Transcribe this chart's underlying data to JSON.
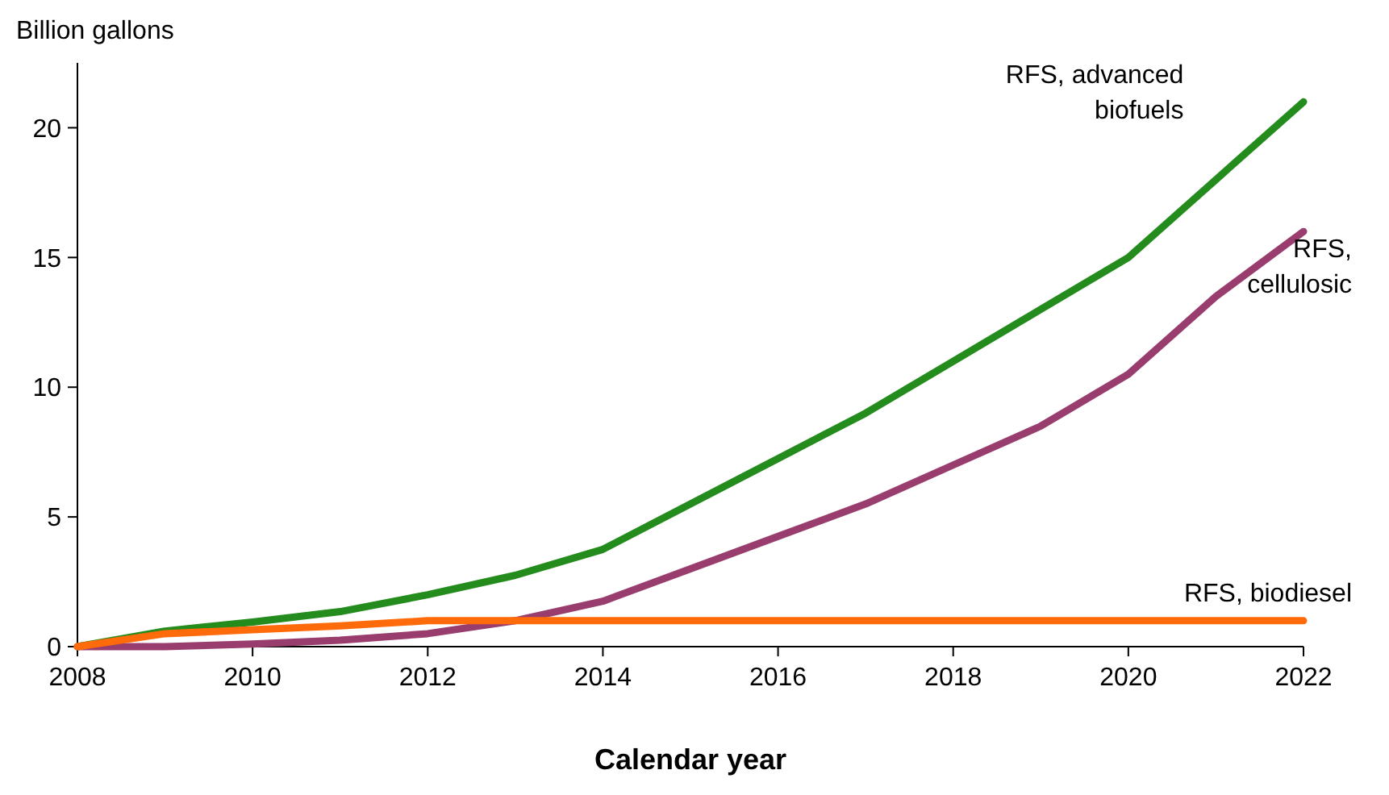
{
  "chart_data": {
    "type": "line",
    "ylabel": "Billion gallons",
    "xlabel": "Calendar year",
    "x": [
      2008,
      2009,
      2010,
      2011,
      2012,
      2013,
      2014,
      2015,
      2016,
      2017,
      2018,
      2019,
      2020,
      2021,
      2022
    ],
    "xlim": [
      2008,
      2022
    ],
    "xticks": [
      2008,
      2010,
      2012,
      2014,
      2016,
      2018,
      2020,
      2022
    ],
    "ylim": [
      0,
      22.5
    ],
    "yticks": [
      0,
      5,
      10,
      15,
      20
    ],
    "grid": false,
    "marker": "none",
    "line_style": "solid",
    "series": [
      {
        "name": "RFS, advanced biofuels",
        "color": "#238c1c",
        "values": [
          0,
          0.6,
          0.95,
          1.35,
          2,
          2.75,
          3.75,
          5.5,
          7.25,
          9,
          11,
          13,
          15,
          18,
          21
        ]
      },
      {
        "name": "RFS, cellulosic",
        "color": "#993d6e",
        "values": [
          0,
          0,
          0.1,
          0.25,
          0.5,
          1,
          1.75,
          3,
          4.25,
          5.5,
          7,
          8.5,
          10.5,
          13.5,
          16
        ]
      },
      {
        "name": "RFS, biodiesel",
        "color": "#ff6a0a",
        "values": [
          0,
          0.5,
          0.65,
          0.8,
          1,
          1,
          1,
          1,
          1,
          1,
          1,
          1,
          1,
          1,
          1
        ]
      }
    ]
  }
}
